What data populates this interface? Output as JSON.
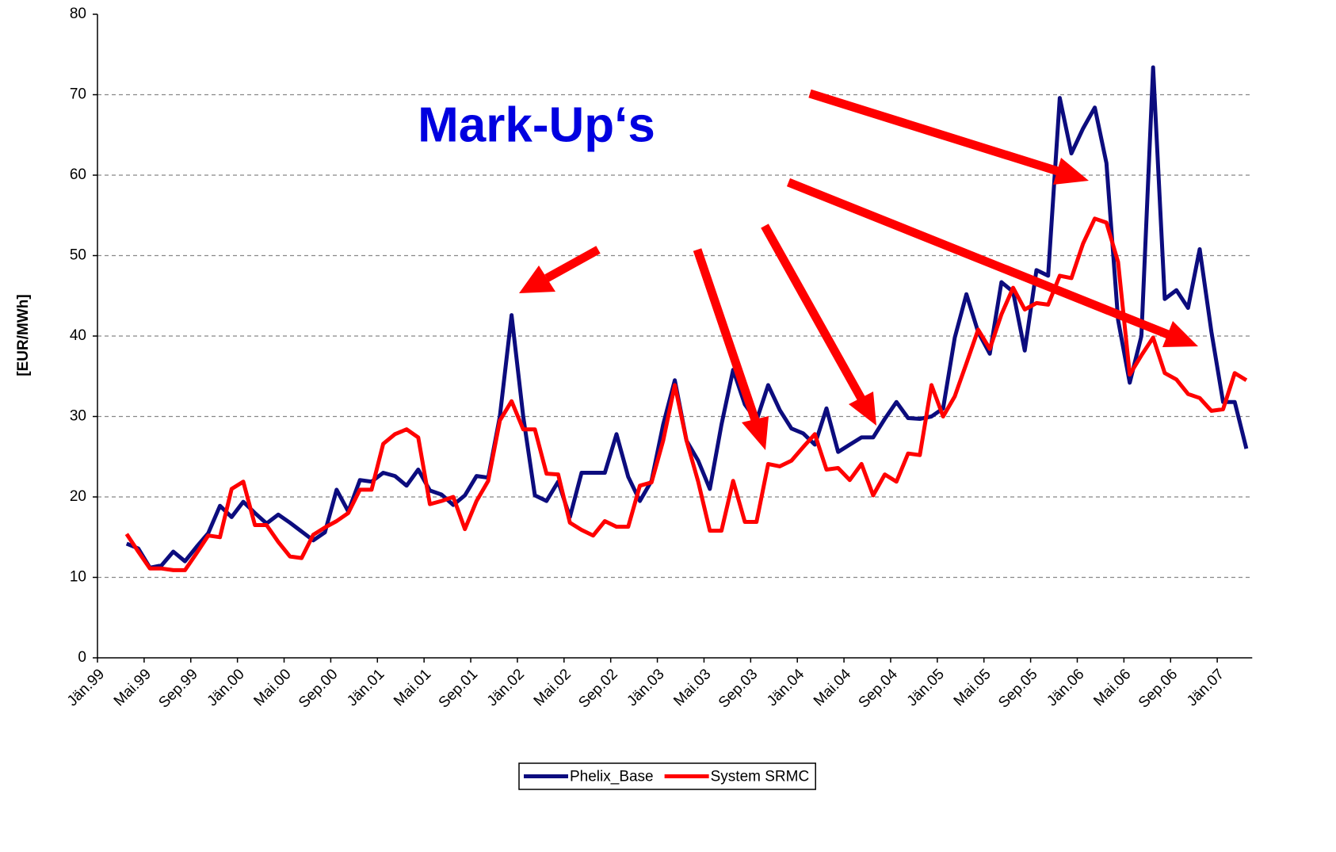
{
  "chart_data": {
    "type": "line",
    "annotation": "Mark-Up‘s",
    "ylabel": "[EUR/MWh]",
    "categories": [
      "Jän.99",
      null,
      null,
      null,
      "Mai.99",
      null,
      null,
      null,
      "Sep.99",
      null,
      null,
      null,
      "Jän.00",
      null,
      null,
      null,
      "Mai.00",
      null,
      null,
      null,
      "Sep.00",
      null,
      null,
      null,
      "Jän.01",
      null,
      null,
      null,
      "Mai.01",
      null,
      null,
      null,
      "Sep.01",
      null,
      null,
      null,
      "Jän.02",
      null,
      null,
      null,
      "Mai.02",
      null,
      null,
      null,
      "Sep.02",
      null,
      null,
      null,
      "Jän.03",
      null,
      null,
      null,
      "Mai.03",
      null,
      null,
      null,
      "Sep.03",
      null,
      null,
      null,
      "Jän.04",
      null,
      null,
      null,
      "Mai.04",
      null,
      null,
      null,
      "Sep.04",
      null,
      null,
      null,
      "Jän.05",
      null,
      null,
      null,
      "Mai.05",
      null,
      null,
      null,
      "Sep.05",
      null,
      null,
      null,
      "Jän.06",
      null,
      null,
      null,
      "Mai.06",
      null,
      null,
      null,
      "Sep.06",
      null,
      null,
      null,
      "Jän.07",
      null,
      null
    ],
    "series": [
      {
        "name": "Phelix_Base",
        "color": "#0c0c7e",
        "values": [
          null,
          null,
          14.2,
          13.6,
          11.2,
          11.5,
          13.2,
          12.0,
          13.8,
          15.5,
          18.9,
          17.5,
          19.4,
          18.0,
          16.7,
          17.8,
          16.8,
          15.7,
          14.6,
          15.6,
          20.9,
          18.2,
          22.1,
          21.9,
          23.0,
          22.6,
          21.4,
          23.4,
          20.8,
          20.3,
          19.0,
          20.2,
          22.6,
          22.4,
          30.0,
          42.6,
          30.0,
          20.2,
          19.5,
          21.9,
          17.5,
          23.0,
          23.0,
          23.0,
          27.8,
          22.5,
          19.5,
          22.0,
          29.0,
          34.5,
          27.0,
          24.5,
          21.0,
          29.0,
          35.8,
          31.5,
          29.5,
          33.9,
          30.8,
          28.5,
          27.9,
          26.5,
          31.0,
          25.6,
          26.5,
          27.4,
          27.4,
          29.7,
          31.8,
          29.8,
          29.7,
          30.0,
          31.0,
          39.8,
          45.2,
          40.5,
          37.8,
          46.7,
          45.5,
          38.2,
          48.2,
          47.5,
          69.6,
          62.7,
          65.8,
          68.4,
          61.5,
          42.0,
          34.2,
          40.0,
          73.4,
          44.6,
          45.7,
          43.5,
          50.8,
          40.5,
          31.8,
          31.8,
          26.0
        ]
      },
      {
        "name": "System SRMC",
        "color": "#ff0000",
        "values": [
          null,
          null,
          15.4,
          13.2,
          11.1,
          11.1,
          10.9,
          10.9,
          13.0,
          15.2,
          15.0,
          21.0,
          21.9,
          16.5,
          16.5,
          14.4,
          12.6,
          12.4,
          15.3,
          16.2,
          17.0,
          18.0,
          20.9,
          20.9,
          26.6,
          27.8,
          28.4,
          27.4,
          19.1,
          19.5,
          20.0,
          16.0,
          19.5,
          22.0,
          29.5,
          31.9,
          28.4,
          28.4,
          22.9,
          22.8,
          16.8,
          15.9,
          15.2,
          17.0,
          16.3,
          16.3,
          21.4,
          21.8,
          27.0,
          33.9,
          27.0,
          21.9,
          15.8,
          15.8,
          22.0,
          16.9,
          16.9,
          24.1,
          23.8,
          24.5,
          26.2,
          27.8,
          23.4,
          23.6,
          22.1,
          24.1,
          20.2,
          22.8,
          21.9,
          25.4,
          25.2,
          33.9,
          30.0,
          32.5,
          36.6,
          40.8,
          38.4,
          42.7,
          46.0,
          43.3,
          44.1,
          43.9,
          47.5,
          47.2,
          51.5,
          54.6,
          54.1,
          49.2,
          35.2,
          37.6,
          39.8,
          35.4,
          34.6,
          32.8,
          32.3,
          30.7,
          30.9,
          35.4,
          34.5
        ]
      }
    ],
    "ylim": [
      0,
      80
    ],
    "yticks": [
      0,
      10,
      20,
      30,
      40,
      50,
      60,
      70,
      80
    ],
    "grid": true,
    "legend": "bottom"
  }
}
